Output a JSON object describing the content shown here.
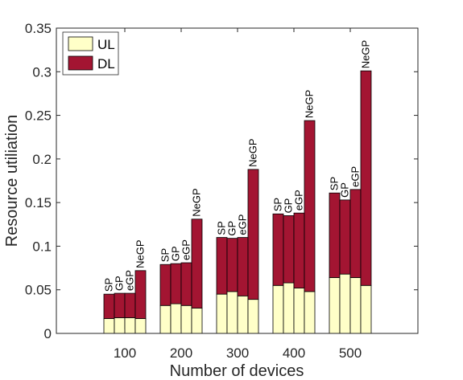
{
  "chart_data": {
    "type": "bar",
    "stacked": true,
    "grouped": true,
    "title": "",
    "xlabel": "Number of devices",
    "ylabel": "Resource utiliation",
    "ylim": [
      0,
      0.35
    ],
    "yticks": [
      "0",
      "0.05",
      "0.1",
      "0.15",
      "0.2",
      "0.25",
      "0.3",
      "0.35"
    ],
    "categories": [
      "100",
      "200",
      "300",
      "400",
      "500"
    ],
    "schemes": [
      "SP",
      "GP",
      "eGP",
      "NeGP"
    ],
    "grid": false,
    "legend_position": "top-left",
    "series": [
      {
        "name": "UL",
        "color": "#ffffc8",
        "values": [
          [
            0.017,
            0.018,
            0.018,
            0.017
          ],
          [
            0.032,
            0.034,
            0.032,
            0.029
          ],
          [
            0.045,
            0.048,
            0.043,
            0.039
          ],
          [
            0.055,
            0.058,
            0.052,
            0.048
          ],
          [
            0.064,
            0.068,
            0.064,
            0.055
          ]
        ]
      },
      {
        "name": "DL",
        "color": "#a31532",
        "values": [
          [
            0.028,
            0.028,
            0.028,
            0.055
          ],
          [
            0.047,
            0.046,
            0.049,
            0.102
          ],
          [
            0.065,
            0.061,
            0.067,
            0.149
          ],
          [
            0.082,
            0.077,
            0.086,
            0.196
          ],
          [
            0.097,
            0.085,
            0.101,
            0.246
          ]
        ]
      }
    ]
  }
}
